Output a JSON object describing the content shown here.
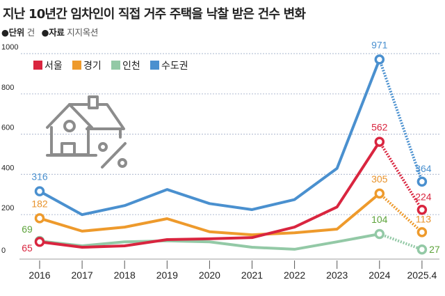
{
  "title": "지난 10년간 임차인이 직접 거주 주택을 낙찰 받은 건수 변화",
  "meta": {
    "unit_label": "●단위",
    "unit_value": "건",
    "source_label": "●자료",
    "source_value": "지지옥션"
  },
  "icon": "house-percent-icon",
  "chart_data": {
    "type": "line",
    "categories": [
      "2016",
      "2017",
      "2018",
      "2019",
      "2020",
      "2021",
      "2022",
      "2023",
      "2024",
      "2025.4"
    ],
    "ylim": [
      0,
      1000
    ],
    "yticks": [
      0,
      200,
      400,
      600,
      800,
      1000
    ],
    "ytick_labels": [
      "0",
      "200",
      "400",
      "600",
      "800",
      "1000"
    ],
    "grid": true,
    "legend_position": "top-left",
    "dashed_last_segment": true,
    "series": [
      {
        "name": "서울",
        "color": "#d9253f",
        "label_color": "#d9253f",
        "values": [
          65,
          38,
          45,
          76,
          80,
          86,
          138,
          238,
          562,
          224
        ],
        "labels": [
          "65",
          "",
          "",
          "",
          "",
          "",
          "",
          "",
          "562",
          "224"
        ]
      },
      {
        "name": "경기",
        "color": "#ee9a2c",
        "label_color": "#e8922a",
        "values": [
          182,
          118,
          138,
          180,
          115,
          100,
          110,
          128,
          305,
          113
        ],
        "labels": [
          "182",
          "",
          "",
          "",
          "",
          "",
          "",
          "",
          "305",
          "113"
        ]
      },
      {
        "name": "인천",
        "color": "#93c9a6",
        "label_color": "#5da33a",
        "values": [
          69,
          45,
          65,
          70,
          65,
          38,
          28,
          65,
          104,
          27
        ],
        "labels": [
          "69",
          "",
          "",
          "",
          "",
          "",
          "",
          "",
          "104",
          "27"
        ]
      },
      {
        "name": "수도권",
        "color": "#4a90cf",
        "label_color": "#4a90cf",
        "values": [
          316,
          200,
          245,
          325,
          255,
          225,
          275,
          430,
          971,
          364
        ],
        "labels": [
          "316",
          "",
          "",
          "",
          "",
          "",
          "",
          "",
          "971",
          "364"
        ]
      }
    ]
  }
}
